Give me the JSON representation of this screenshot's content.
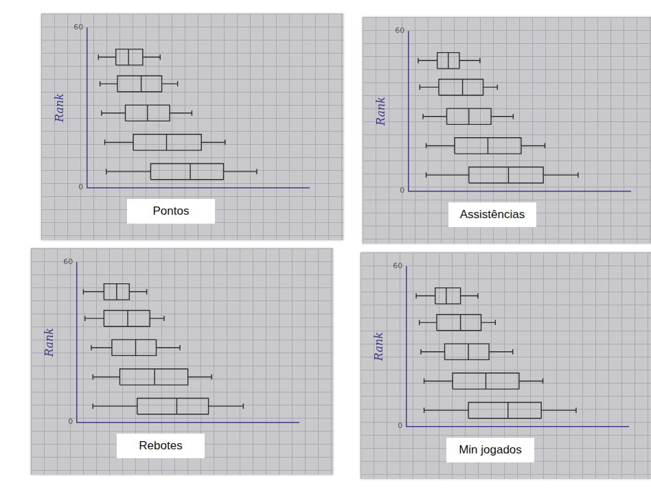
{
  "chart_data": [
    {
      "type": "boxplot",
      "orientation": "horizontal",
      "x_label": "Pontos",
      "y_label": "Rank",
      "ylim": [
        0,
        60
      ],
      "yticks": [
        0,
        60
      ],
      "xlim": [
        0,
        14
      ],
      "tick_labels": "y",
      "color": "#2b2b2b",
      "positions": [
        49,
        39,
        28,
        17,
        6
      ],
      "boxes": [
        {
          "min": 0.7,
          "q1": 1.8,
          "median": 2.6,
          "q3": 3.5,
          "max": 4.6
        },
        {
          "min": 0.8,
          "q1": 1.9,
          "median": 3.4,
          "q3": 4.7,
          "max": 5.7
        },
        {
          "min": 0.9,
          "q1": 2.4,
          "median": 3.8,
          "q3": 5.2,
          "max": 6.6
        },
        {
          "min": 1.1,
          "q1": 2.9,
          "median": 5.0,
          "q3": 7.2,
          "max": 8.7
        },
        {
          "min": 1.2,
          "q1": 4.0,
          "median": 6.5,
          "q3": 8.6,
          "max": 10.7
        }
      ]
    },
    {
      "type": "boxplot",
      "orientation": "horizontal",
      "x_label": "Assistências",
      "y_label": "Rank",
      "ylim": [
        0,
        60
      ],
      "yticks": [
        0,
        60
      ],
      "xlim": [
        0,
        14
      ],
      "tick_labels": "y",
      "color": "#2b2b2b",
      "positions": [
        49,
        39,
        28,
        17,
        6
      ],
      "boxes": [
        {
          "min": 0.6,
          "q1": 1.8,
          "median": 2.5,
          "q3": 3.2,
          "max": 4.5
        },
        {
          "min": 0.7,
          "q1": 1.9,
          "median": 3.4,
          "q3": 4.7,
          "max": 5.6
        },
        {
          "min": 0.9,
          "q1": 2.4,
          "median": 3.8,
          "q3": 5.2,
          "max": 6.6
        },
        {
          "min": 1.1,
          "q1": 2.9,
          "median": 5.0,
          "q3": 7.1,
          "max": 8.6
        },
        {
          "min": 1.1,
          "q1": 3.8,
          "median": 6.3,
          "q3": 8.5,
          "max": 10.7
        }
      ]
    },
    {
      "type": "boxplot",
      "orientation": "horizontal",
      "x_label": "Rebotes",
      "y_label": "Rank",
      "ylim": [
        0,
        60
      ],
      "yticks": [
        0,
        60
      ],
      "xlim": [
        0,
        14
      ],
      "tick_labels": "y",
      "color": "#2b2b2b",
      "positions": [
        49,
        39,
        28,
        17,
        6
      ],
      "boxes": [
        {
          "min": 0.4,
          "q1": 1.7,
          "median": 2.5,
          "q3": 3.3,
          "max": 4.4
        },
        {
          "min": 0.5,
          "q1": 1.7,
          "median": 3.2,
          "q3": 4.6,
          "max": 5.5
        },
        {
          "min": 0.9,
          "q1": 2.2,
          "median": 3.7,
          "q3": 5.0,
          "max": 6.5
        },
        {
          "min": 1.0,
          "q1": 2.7,
          "median": 4.9,
          "q3": 7.0,
          "max": 8.5
        },
        {
          "min": 1.0,
          "q1": 3.8,
          "median": 6.3,
          "q3": 8.3,
          "max": 10.5
        }
      ]
    },
    {
      "type": "boxplot",
      "orientation": "horizontal",
      "x_label": "Min jogados",
      "y_label": "Rank",
      "ylim": [
        0,
        60
      ],
      "yticks": [
        0,
        60
      ],
      "xlim": [
        0,
        14
      ],
      "tick_labels": "y",
      "color": "#2b2b2b",
      "positions": [
        49,
        39,
        28,
        17,
        6
      ],
      "boxes": [
        {
          "min": 0.6,
          "q1": 1.8,
          "median": 2.5,
          "q3": 3.4,
          "max": 4.5
        },
        {
          "min": 0.8,
          "q1": 1.9,
          "median": 3.4,
          "q3": 4.7,
          "max": 5.6
        },
        {
          "min": 0.9,
          "q1": 2.4,
          "median": 3.9,
          "q3": 5.2,
          "max": 6.7
        },
        {
          "min": 1.1,
          "q1": 2.9,
          "median": 5.0,
          "q3": 7.1,
          "max": 8.6
        },
        {
          "min": 1.1,
          "q1": 3.9,
          "median": 6.4,
          "q3": 8.5,
          "max": 10.7
        }
      ]
    }
  ]
}
